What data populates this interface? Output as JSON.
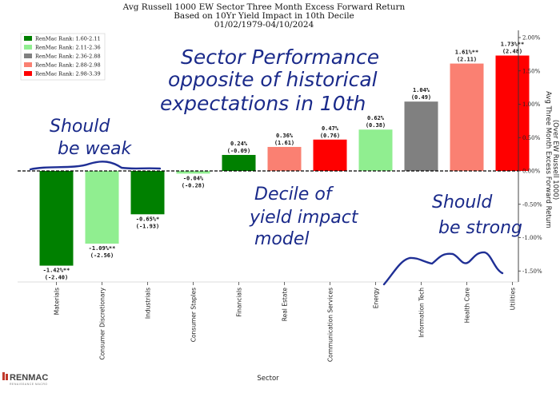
{
  "chart_data": {
    "type": "bar",
    "title_lines": [
      "Avg Russell 1000 EW Sector Three Month Excess Forward Return",
      "Based on 10Yr Yield Impact in 10th Decile",
      "01/02/1979-04/10/2024"
    ],
    "xlabel": "Sector",
    "ylabel_lines": [
      "Avg Three Month Excess Forward Return",
      "(Over EW Russell 1000)"
    ],
    "ylim": [
      -1.8,
      2.1
    ],
    "yticks": [
      -1.5,
      -1.0,
      -0.5,
      0.0,
      0.5,
      1.0,
      1.5,
      2.0
    ],
    "ytick_labels": [
      "-1.50%",
      "-1.00%",
      "-0.50%",
      "0.00%",
      "0.50%",
      "1.00%",
      "1.50%",
      "2.00%"
    ],
    "categories": [
      "Materials",
      "Consumer Discretionary",
      "Industrials",
      "Consumer Staples",
      "Financials",
      "Real Estate",
      "Communication Services",
      "Energy",
      "Information Tech",
      "Health Care",
      "Utilities"
    ],
    "values": [
      -1.42,
      -1.09,
      -0.65,
      -0.04,
      0.24,
      0.36,
      0.47,
      0.62,
      1.04,
      1.61,
      1.73
    ],
    "value_labels": [
      "-1.42%**",
      "-1.09%**",
      "-0.65%*",
      "-0.04%",
      "0.24%",
      "0.36%",
      "0.47%",
      "0.62%",
      "1.04%",
      "1.61%**",
      "1.73%**"
    ],
    "tstat_labels": [
      "(-2.40)",
      "(-2.56)",
      "(-1.93)",
      "(-0.28)",
      "(-0.09)",
      "(1.61)",
      "(0.76)",
      "(0.38)",
      "(0.49)",
      "(2.11)",
      "(2.48)"
    ],
    "bar_colors": [
      "#008000",
      "#90ee90",
      "#008000",
      "#90ee90",
      "#008000",
      "#fa8072",
      "#ff0000",
      "#90ee90",
      "#808080",
      "#fa8072",
      "#ff0000"
    ],
    "legend": {
      "placement": "top-left",
      "entries": [
        {
          "label": "RenMac Rank: 1.60-2.11",
          "color": "#008000"
        },
        {
          "label": "RenMac Rank: 2.11-2.36",
          "color": "#90ee90"
        },
        {
          "label": "RenMac Rank: 2.36-2.88",
          "color": "#808080"
        },
        {
          "label": "RenMac Rank: 2.88-2.98",
          "color": "#fa8072"
        },
        {
          "label": "RenMac Rank: 2.98-3.39",
          "color": "#ff0000"
        }
      ]
    },
    "annotations": [
      "Sector Performance",
      "opposite of historical",
      "expectations in 10th",
      "Should",
      "be weak",
      "Decile of",
      "yield impact",
      "model",
      "Should",
      "be strong"
    ]
  },
  "logo": {
    "name": "RENMAC",
    "sub": "RENAISSANCE MACRO"
  }
}
